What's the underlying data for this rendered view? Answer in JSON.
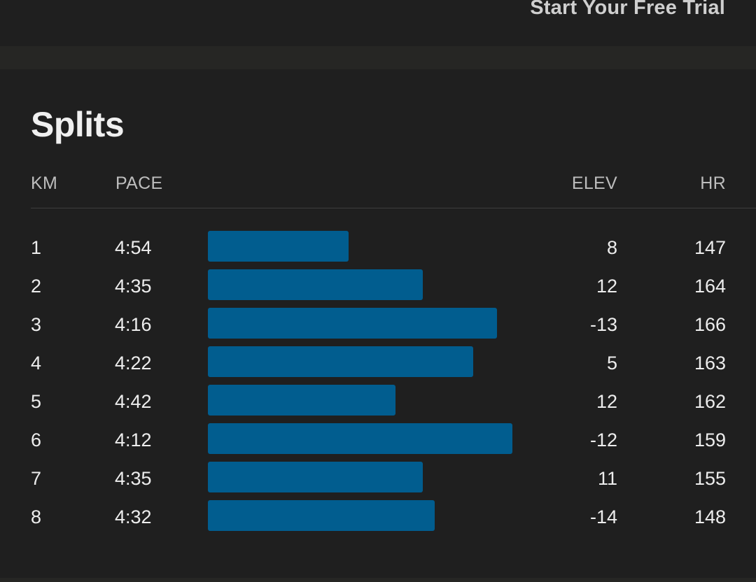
{
  "header": {
    "cta_label": "Start Your Free Trial"
  },
  "splits": {
    "title": "Splits",
    "columns": {
      "km": "KM",
      "pace": "PACE",
      "elev": "ELEV",
      "hr": "HR"
    },
    "bar_color": "#015d8f",
    "rows": [
      {
        "km": "1",
        "pace": "4:54",
        "pace_seconds": 294,
        "elev": "8",
        "hr": "147"
      },
      {
        "km": "2",
        "pace": "4:35",
        "pace_seconds": 275,
        "elev": "12",
        "hr": "164"
      },
      {
        "km": "3",
        "pace": "4:16",
        "pace_seconds": 256,
        "elev": "-13",
        "hr": "166"
      },
      {
        "km": "4",
        "pace": "4:22",
        "pace_seconds": 262,
        "elev": "5",
        "hr": "163"
      },
      {
        "km": "5",
        "pace": "4:42",
        "pace_seconds": 282,
        "elev": "12",
        "hr": "162"
      },
      {
        "km": "6",
        "pace": "4:12",
        "pace_seconds": 252,
        "elev": "-12",
        "hr": "159"
      },
      {
        "km": "7",
        "pace": "4:35",
        "pace_seconds": 275,
        "elev": "11",
        "hr": "155"
      },
      {
        "km": "8",
        "pace": "4:32",
        "pace_seconds": 272,
        "elev": "-14",
        "hr": "148"
      }
    ]
  }
}
